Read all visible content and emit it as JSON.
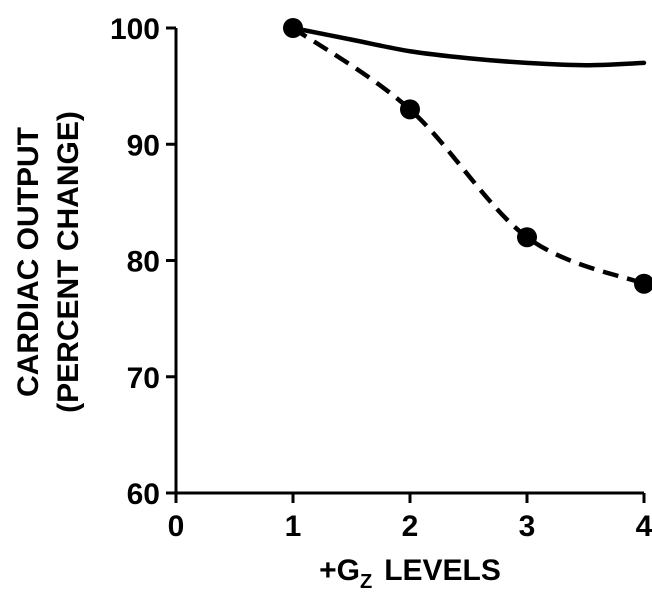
{
  "chart_data": {
    "type": "line",
    "title": "",
    "xlabel_main": "+G",
    "xlabel_sub": "Z",
    "xlabel_rest": "LEVELS",
    "ylabel_line1": "CARDIAC OUTPUT",
    "ylabel_line2": "(PERCENT CHANGE)",
    "xlim": [
      0,
      4
    ],
    "ylim": [
      60,
      100
    ],
    "x_ticks": [
      "0",
      "1",
      "2",
      "3",
      "4"
    ],
    "y_ticks": [
      "60",
      "70",
      "80",
      "90",
      "100"
    ],
    "grid": false,
    "legend": "none",
    "series": [
      {
        "style": "solid",
        "markers": false,
        "x": [
          1,
          1.5,
          2,
          2.5,
          3,
          3.5,
          4
        ],
        "y": [
          100,
          99,
          98,
          97.4,
          97,
          96.8,
          97
        ]
      },
      {
        "style": "dashed",
        "markers": true,
        "x": [
          1,
          2,
          3,
          4
        ],
        "y": [
          100,
          93,
          82,
          78
        ]
      }
    ]
  }
}
